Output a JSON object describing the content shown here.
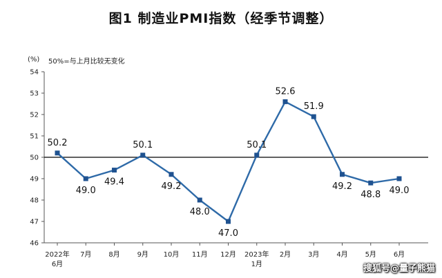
{
  "title": "图1  制造业PMI指数（经季节调整）",
  "y_unit": "(%)",
  "note": "50%=与上月比较无变化",
  "watermark": "搜狐号@量子熊猫",
  "chart_data": {
    "type": "line",
    "categories": [
      [
        "2022年",
        "6月"
      ],
      [
        "7月"
      ],
      [
        "8月"
      ],
      [
        "9月"
      ],
      [
        "10月"
      ],
      [
        "11月"
      ],
      [
        "12月"
      ],
      [
        "2023年",
        "1月"
      ],
      [
        "2月"
      ],
      [
        "3月"
      ],
      [
        "4月"
      ],
      [
        "5月"
      ],
      [
        "6月"
      ]
    ],
    "values": [
      50.2,
      49.0,
      49.4,
      50.1,
      49.2,
      48.0,
      47.0,
      50.1,
      52.6,
      51.9,
      49.2,
      48.8,
      49.0
    ],
    "value_labels": [
      "50.2",
      "49.0",
      "49.4",
      "50.1",
      "49.2",
      "48.0",
      "47.0",
      "50.1",
      "52.6",
      "51.9",
      "49.2",
      "48.8",
      "49.0"
    ],
    "label_positions": [
      "above",
      "below",
      "below",
      "above",
      "below",
      "below",
      "below",
      "above",
      "above",
      "above",
      "below",
      "below",
      "below"
    ],
    "ylim": [
      46,
      54
    ],
    "yticks": [
      46,
      47,
      48,
      49,
      50,
      51,
      52,
      53,
      54
    ],
    "reference_line": 50,
    "grid": false,
    "colors": {
      "line": "#2e6aa8",
      "marker": "#1f5290",
      "reference": "#000000",
      "axis": "#555555"
    }
  }
}
